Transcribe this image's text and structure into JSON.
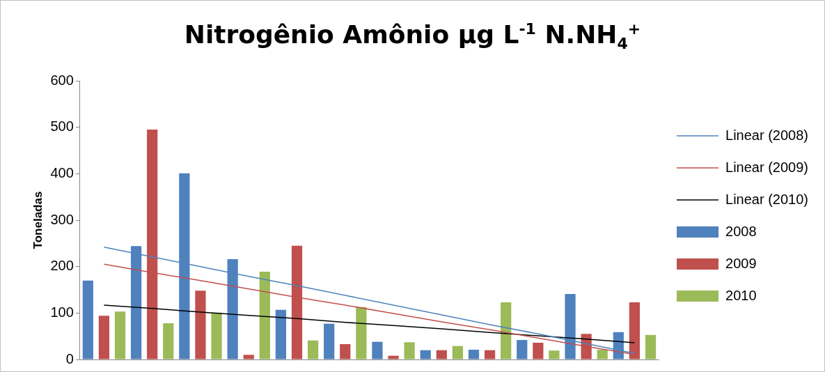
{
  "chart_data": {
    "type": "bar",
    "title": "Nitrogênio Amônio µg L$^{-1}$ N.NH$_{4}$$^{+}$",
    "ylabel": "Toneladas",
    "categories": [
      null,
      null,
      null,
      null,
      null,
      null,
      null,
      null,
      null,
      null,
      null,
      null
    ],
    "series": [
      {
        "name": "2008",
        "color": "#4f81bd",
        "values": [
          170,
          244,
          401,
          216,
          107,
          77,
          38,
          20,
          21,
          42,
          141,
          59
        ]
      },
      {
        "name": "2009",
        "color": "#c0504d",
        "values": [
          94,
          495,
          148,
          10,
          245,
          33,
          8,
          20,
          20,
          36,
          55,
          123
        ]
      },
      {
        "name": "2010",
        "color": "#9bbb59",
        "values": [
          103,
          78,
          101,
          189,
          41,
          113,
          37,
          29,
          123,
          19,
          21,
          53
        ]
      },
      {
        "name": "Linear (2008)",
        "type": "line",
        "color": "#4f81bd",
        "values": [
          242,
          221,
          200,
          179,
          159,
          138,
          117,
          96,
          75,
          55,
          34,
          13
        ]
      },
      {
        "name": "Linear (2009)",
        "type": "line",
        "color": "#c0504d",
        "values": [
          205,
          187,
          170,
          152,
          134,
          117,
          99,
          81,
          64,
          46,
          28,
          11
        ]
      },
      {
        "name": "Linear (2010)",
        "type": "line",
        "color": "#000000",
        "values": [
          117,
          110,
          102,
          95,
          88,
          80,
          73,
          66,
          58,
          51,
          44,
          36
        ]
      }
    ],
    "ylim": [
      0,
      600
    ],
    "yticks": [
      0,
      100,
      200,
      300,
      400,
      500,
      600
    ],
    "grid": false,
    "legend": "right",
    "marker": "none",
    "line_style": "solid",
    "tick_labels": "y"
  }
}
